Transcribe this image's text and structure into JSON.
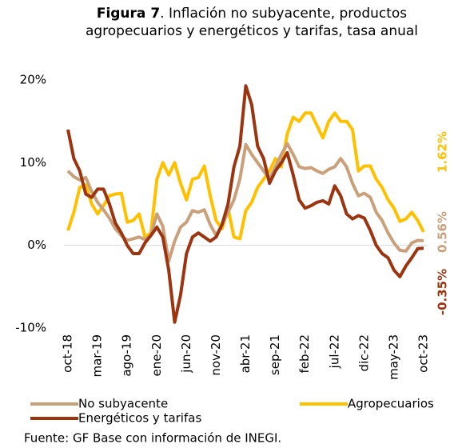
{
  "chart_data": {
    "type": "line",
    "title_label": "Figura 7",
    "title": ". Inflación no subyacente, productos agropecuarios y energéticos y tarifas, tasa anual",
    "source": "Fuente: GF Base con información de INEGI.",
    "categories": [
      "oct-18",
      null,
      null,
      null,
      null,
      "mar-19",
      null,
      null,
      null,
      null,
      "ago-19",
      null,
      null,
      null,
      null,
      "ene-20",
      null,
      null,
      null,
      null,
      "jun-20",
      null,
      null,
      null,
      null,
      "nov-20",
      null,
      null,
      null,
      null,
      "abr-21",
      null,
      null,
      null,
      null,
      "sep-21",
      null,
      null,
      null,
      null,
      "feb-22",
      null,
      null,
      null,
      null,
      "jul-22",
      null,
      null,
      null,
      null,
      "dic-22",
      null,
      null,
      null,
      null,
      "may-23",
      null,
      null,
      null,
      null,
      "oct-23"
    ],
    "ylim": [
      -10,
      20
    ],
    "yticks": [
      {
        "value": -10,
        "label": "-10%"
      },
      {
        "value": 0,
        "label": "0%"
      },
      {
        "value": 10,
        "label": "10%"
      },
      {
        "value": 20,
        "label": "20%"
      }
    ],
    "grid": false,
    "series": [
      {
        "name": "No subyacente",
        "color": "#C9A07A",
        "values": [
          9.0,
          8.3,
          7.9,
          8.2,
          6.5,
          5.2,
          4.3,
          3.3,
          2.0,
          1.2,
          0.6,
          0.8,
          1.0,
          0.7,
          1.2,
          3.8,
          2.3,
          -1.9,
          0.5,
          2.2,
          2.8,
          4.2,
          4.0,
          4.3,
          2.5,
          1.2,
          2.5,
          4.0,
          5.5,
          8.0,
          12.2,
          11.0,
          10.0,
          9.0,
          8.0,
          9.5,
          11.0,
          12.3,
          11.0,
          9.5,
          9.3,
          9.4,
          9.0,
          8.7,
          9.2,
          9.5,
          10.5,
          9.5,
          7.5,
          6.0,
          6.3,
          5.8,
          4.0,
          3.0,
          1.5,
          0.3,
          -0.6,
          -0.7,
          0.3,
          0.6,
          0.56
        ],
        "value_labels": [
          null,
          null,
          null,
          null,
          null,
          null,
          null,
          null,
          null,
          null,
          null,
          null,
          null,
          null,
          null,
          null,
          null,
          null,
          null,
          null,
          null,
          null,
          null,
          null,
          null,
          null,
          null,
          null,
          null,
          null,
          null,
          null,
          null,
          null,
          null,
          null,
          null,
          null,
          null,
          null,
          null,
          null,
          null,
          null,
          null,
          null,
          null,
          null,
          null,
          null,
          null,
          null,
          null,
          null,
          null,
          null,
          null,
          null,
          null,
          null,
          "0.56%"
        ]
      },
      {
        "name": "Agropecuarios",
        "color": "#FFC000",
        "values": [
          1.8,
          4.0,
          7.0,
          7.3,
          5.0,
          3.8,
          4.8,
          6.0,
          6.2,
          6.3,
          2.8,
          3.0,
          3.8,
          1.0,
          1.5,
          8.0,
          10.0,
          8.5,
          10.0,
          7.5,
          5.5,
          8.0,
          8.2,
          9.6,
          6.0,
          3.0,
          2.0,
          4.5,
          1.0,
          0.8,
          4.2,
          5.2,
          7.0,
          8.0,
          9.0,
          10.5,
          9.5,
          13.5,
          15.5,
          15.0,
          16.0,
          16.0,
          14.5,
          13.0,
          15.0,
          16.0,
          15.0,
          15.0,
          14.0,
          9.0,
          9.6,
          9.6,
          8.0,
          7.0,
          5.5,
          4.5,
          2.9,
          3.2,
          4.0,
          3.0,
          1.62
        ],
        "value_labels": [
          null,
          null,
          null,
          null,
          null,
          null,
          null,
          null,
          null,
          null,
          null,
          null,
          null,
          null,
          null,
          null,
          null,
          null,
          null,
          null,
          null,
          null,
          null,
          null,
          null,
          null,
          null,
          null,
          null,
          null,
          null,
          null,
          null,
          null,
          null,
          null,
          null,
          null,
          null,
          null,
          null,
          null,
          null,
          null,
          null,
          null,
          null,
          null,
          null,
          null,
          null,
          null,
          null,
          null,
          null,
          null,
          null,
          null,
          null,
          null,
          "1.62%"
        ]
      },
      {
        "name": "Energéticos y tarifas",
        "color": "#9C3410",
        "values": [
          14.0,
          10.5,
          9.0,
          6.2,
          5.8,
          6.8,
          6.8,
          5.0,
          2.7,
          1.5,
          0.0,
          -1.0,
          -1.0,
          0.3,
          1.2,
          2.2,
          1.0,
          -3.0,
          -9.3,
          -6.0,
          -1.0,
          1.0,
          1.5,
          1.0,
          0.5,
          1.0,
          2.5,
          5.0,
          9.5,
          12.0,
          19.3,
          17.0,
          12.0,
          10.5,
          7.5,
          9.0,
          10.0,
          11.2,
          8.5,
          5.5,
          4.5,
          4.8,
          5.2,
          5.4,
          5.0,
          7.2,
          6.0,
          3.8,
          3.2,
          3.6,
          3.3,
          1.8,
          0.0,
          -1.0,
          -1.5,
          -3.0,
          -3.8,
          -2.5,
          -1.5,
          -0.4,
          -0.35
        ],
        "value_labels": [
          null,
          null,
          null,
          null,
          null,
          null,
          null,
          null,
          null,
          null,
          null,
          null,
          null,
          null,
          null,
          null,
          null,
          null,
          null,
          null,
          null,
          null,
          null,
          null,
          null,
          null,
          null,
          null,
          null,
          null,
          null,
          null,
          null,
          null,
          null,
          null,
          null,
          null,
          null,
          null,
          null,
          null,
          null,
          null,
          null,
          null,
          null,
          null,
          null,
          null,
          null,
          null,
          null,
          null,
          null,
          null,
          null,
          null,
          null,
          null,
          "-0.35%"
        ]
      }
    ]
  }
}
